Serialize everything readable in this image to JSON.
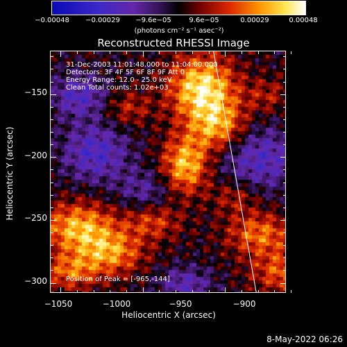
{
  "chart_data": {
    "type": "heatmap",
    "title": "Reconstructed RHESSI Image",
    "xlabel": "Heliocentric X (arcsec)",
    "ylabel": "Heliocentric Y (arcsec)",
    "xlim": [
      -1056,
      -913
    ],
    "ylim": [
      -308,
      -116
    ],
    "x_ticks": [
      "−1050",
      "−1000",
      "−950",
      "−900"
    ],
    "x_tick_values": [
      -1050,
      -1000,
      -950,
      -900
    ],
    "y_ticks": [
      "−150",
      "−200",
      "−250",
      "−300"
    ],
    "y_tick_values": [
      -150,
      -200,
      -250,
      -300
    ],
    "colorbar": {
      "ticks": [
        "−0.00048",
        "−0.00029",
        "−9.6e−05",
        "9.6e−05",
        "0.00029",
        "0.00048"
      ],
      "tick_values": [
        -0.00048,
        -0.00029,
        -9.6e-05,
        9.6e-05,
        0.00029,
        0.00048
      ],
      "unit_label": "(photons cm⁻² s⁻¹ asec⁻²)",
      "range": [
        -0.00048,
        0.00048
      ]
    },
    "annotations": {
      "time": "31-Dec-2003 11:01:48.000 to 11:04:00.000",
      "detectors": "Detectors: 3F 4F 5F 6F 8F 9F  Att 0",
      "energy": "Energy Range: 12.0 - 25.0 keV",
      "clean": "Clean     Total counts: 1.02e+03",
      "peak": "Position of Peak = [-965,-144]"
    },
    "limb_line": {
      "x_top": -957,
      "y_top": -116,
      "x_bottom": -931,
      "y_bottom": -308
    },
    "grid": false
  },
  "footer": {
    "date": "8-May-2022 06:26"
  },
  "colors": {
    "background": "#000000",
    "foreground": "#ffffff"
  }
}
